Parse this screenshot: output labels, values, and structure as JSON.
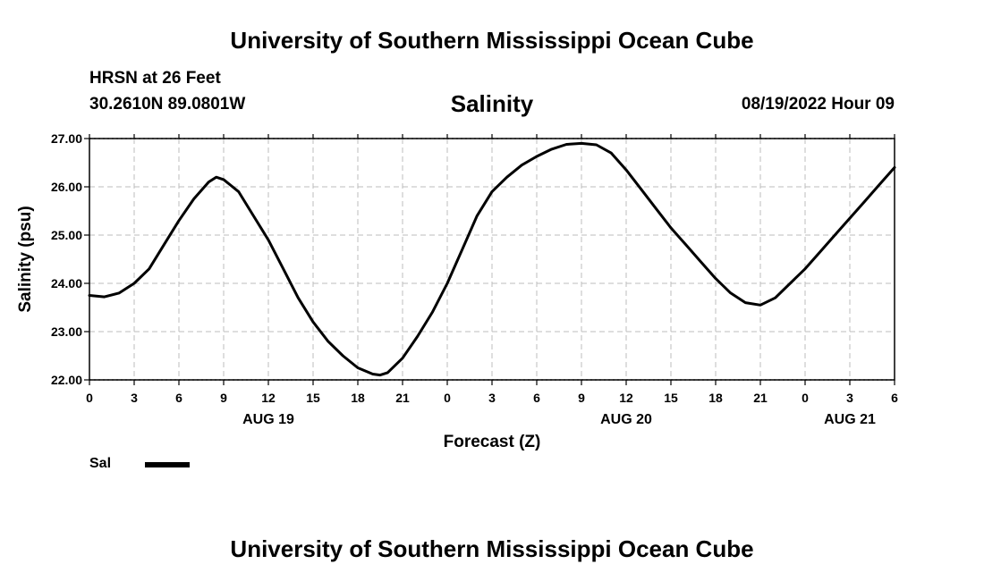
{
  "header": {
    "title": "University of Southern Mississippi Ocean Cube",
    "station": "HRSN at 26 Feet",
    "coordinates": "30.2610N  89.0801W",
    "datetime": "08/19/2022 Hour 09"
  },
  "footer": {
    "title": "University of Southern Mississippi Ocean Cube"
  },
  "chart_data": {
    "type": "line",
    "title": "Salinity",
    "xlabel": "Forecast (Z)",
    "ylabel": "Salinity (psu)",
    "ylim": [
      22,
      27
    ],
    "y_ticks": [
      "22.00",
      "23.00",
      "24.00",
      "25.00",
      "26.00",
      "27.00"
    ],
    "x_range_hours": [
      0,
      54
    ],
    "x_tick_labels": [
      "0",
      "3",
      "6",
      "9",
      "12",
      "15",
      "18",
      "21",
      "0",
      "3",
      "6",
      "9",
      "12",
      "15",
      "18",
      "21",
      "0",
      "3",
      "6"
    ],
    "date_labels": [
      {
        "label": "AUG 19",
        "hour": 12
      },
      {
        "label": "AUG 20",
        "hour": 36
      },
      {
        "label": "AUG 21",
        "hour": 51
      }
    ],
    "grid": true,
    "line_color": "#000000",
    "series": [
      {
        "name": "Sal",
        "x": [
          0,
          1,
          2,
          3,
          4,
          5,
          6,
          7,
          8,
          8.5,
          9,
          10,
          11,
          12,
          13,
          14,
          15,
          16,
          17,
          18,
          19,
          19.5,
          20,
          21,
          22,
          23,
          24,
          25,
          26,
          27,
          28,
          29,
          30,
          31,
          32,
          33,
          34,
          35,
          36,
          37,
          38,
          39,
          40,
          41,
          42,
          43,
          44,
          45,
          46,
          47,
          48,
          49,
          50,
          51,
          52,
          53,
          54
        ],
        "y": [
          23.75,
          23.72,
          23.8,
          24.0,
          24.3,
          24.8,
          25.3,
          25.75,
          26.1,
          26.2,
          26.15,
          25.9,
          25.4,
          24.9,
          24.3,
          23.7,
          23.2,
          22.8,
          22.5,
          22.25,
          22.12,
          22.1,
          22.15,
          22.45,
          22.9,
          23.4,
          24.0,
          24.7,
          25.4,
          25.9,
          26.2,
          26.45,
          26.63,
          26.78,
          26.88,
          26.9,
          26.87,
          26.7,
          26.35,
          25.95,
          25.55,
          25.15,
          24.8,
          24.45,
          24.1,
          23.8,
          23.6,
          23.55,
          23.7,
          24.0,
          24.3,
          24.65,
          25.0,
          25.35,
          25.7,
          26.05,
          26.4
        ]
      }
    ]
  },
  "legend": {
    "label": "Sal"
  }
}
